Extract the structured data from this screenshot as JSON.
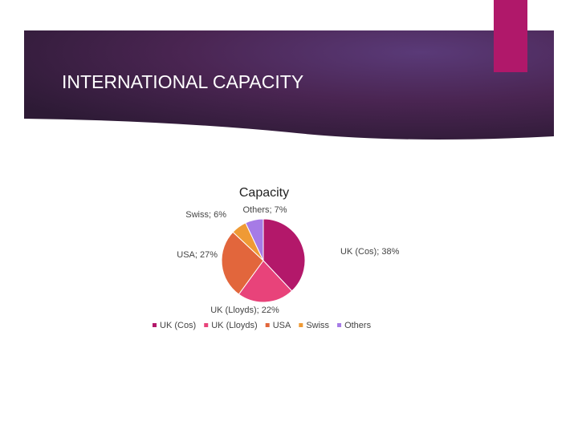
{
  "slide_title": "INTERNATIONAL CAPACITY",
  "chart_data": {
    "type": "pie",
    "title": "Capacity",
    "categories": [
      "UK (Cos)",
      "UK (Lloyds)",
      "USA",
      "Swiss",
      "Others"
    ],
    "values": [
      38,
      22,
      27,
      6,
      7
    ],
    "value_labels": [
      "UK (Cos); 38%",
      "UK (Lloyds); 22%",
      "USA; 27%",
      "Swiss; 6%",
      "Others; 7%"
    ],
    "colors": [
      "#b3186a",
      "#e8437a",
      "#e2663c",
      "#ef9a35",
      "#a67be6"
    ],
    "legend": "bottom"
  }
}
